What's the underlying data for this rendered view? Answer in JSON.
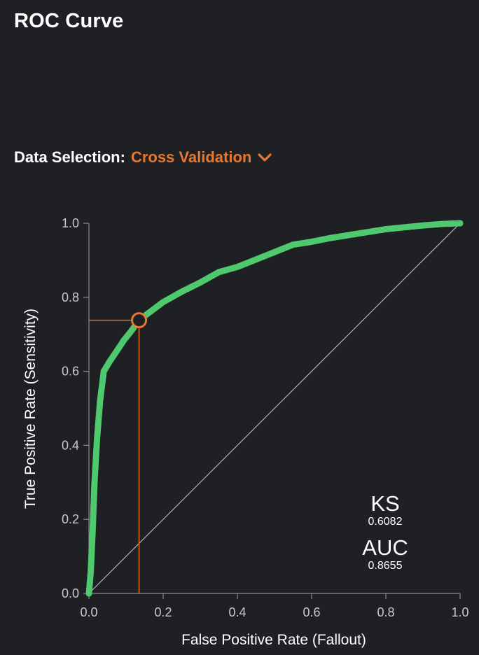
{
  "header": {
    "title": "ROC Curve"
  },
  "selection": {
    "label": "Data Selection:",
    "value": "Cross Validation",
    "icon": "chevron-down-icon"
  },
  "colors": {
    "curve": "#4fc96d",
    "highlight": "#e8782f",
    "background": "#1e2023",
    "diagonal": "#bfbfbf"
  },
  "metrics": [
    {
      "name": "KS",
      "value": "0.6082"
    },
    {
      "name": "AUC",
      "value": "0.8655"
    }
  ],
  "chart_data": {
    "type": "scatter",
    "xlabel": "False Positive Rate (Fallout)",
    "ylabel": "True Positive Rate (Sensitivity)",
    "xlim": [
      0,
      1
    ],
    "ylim": [
      0,
      1
    ],
    "xticks": [
      "0.0",
      "0.2",
      "0.4",
      "0.6",
      "0.8",
      "1.0"
    ],
    "yticks": [
      "0.0",
      "0.2",
      "0.4",
      "0.6",
      "0.8",
      "1.0"
    ],
    "grid": false,
    "diagonal": true,
    "selected_point": {
      "x": 0.135,
      "y": 0.738
    },
    "curve_anchors": [
      [
        0.0,
        0.0
      ],
      [
        0.005,
        0.06
      ],
      [
        0.01,
        0.17
      ],
      [
        0.015,
        0.3
      ],
      [
        0.022,
        0.42
      ],
      [
        0.03,
        0.52
      ],
      [
        0.04,
        0.6
      ],
      [
        0.055,
        0.625
      ],
      [
        0.075,
        0.655
      ],
      [
        0.095,
        0.685
      ],
      [
        0.115,
        0.71
      ],
      [
        0.135,
        0.738
      ],
      [
        0.16,
        0.757
      ],
      [
        0.2,
        0.787
      ],
      [
        0.25,
        0.815
      ],
      [
        0.3,
        0.84
      ],
      [
        0.35,
        0.868
      ],
      [
        0.4,
        0.882
      ],
      [
        0.45,
        0.902
      ],
      [
        0.5,
        0.922
      ],
      [
        0.55,
        0.942
      ],
      [
        0.6,
        0.95
      ],
      [
        0.65,
        0.96
      ],
      [
        0.7,
        0.968
      ],
      [
        0.75,
        0.976
      ],
      [
        0.8,
        0.984
      ],
      [
        0.85,
        0.989
      ],
      [
        0.9,
        0.994
      ],
      [
        0.95,
        0.998
      ],
      [
        1.0,
        1.0
      ]
    ]
  }
}
